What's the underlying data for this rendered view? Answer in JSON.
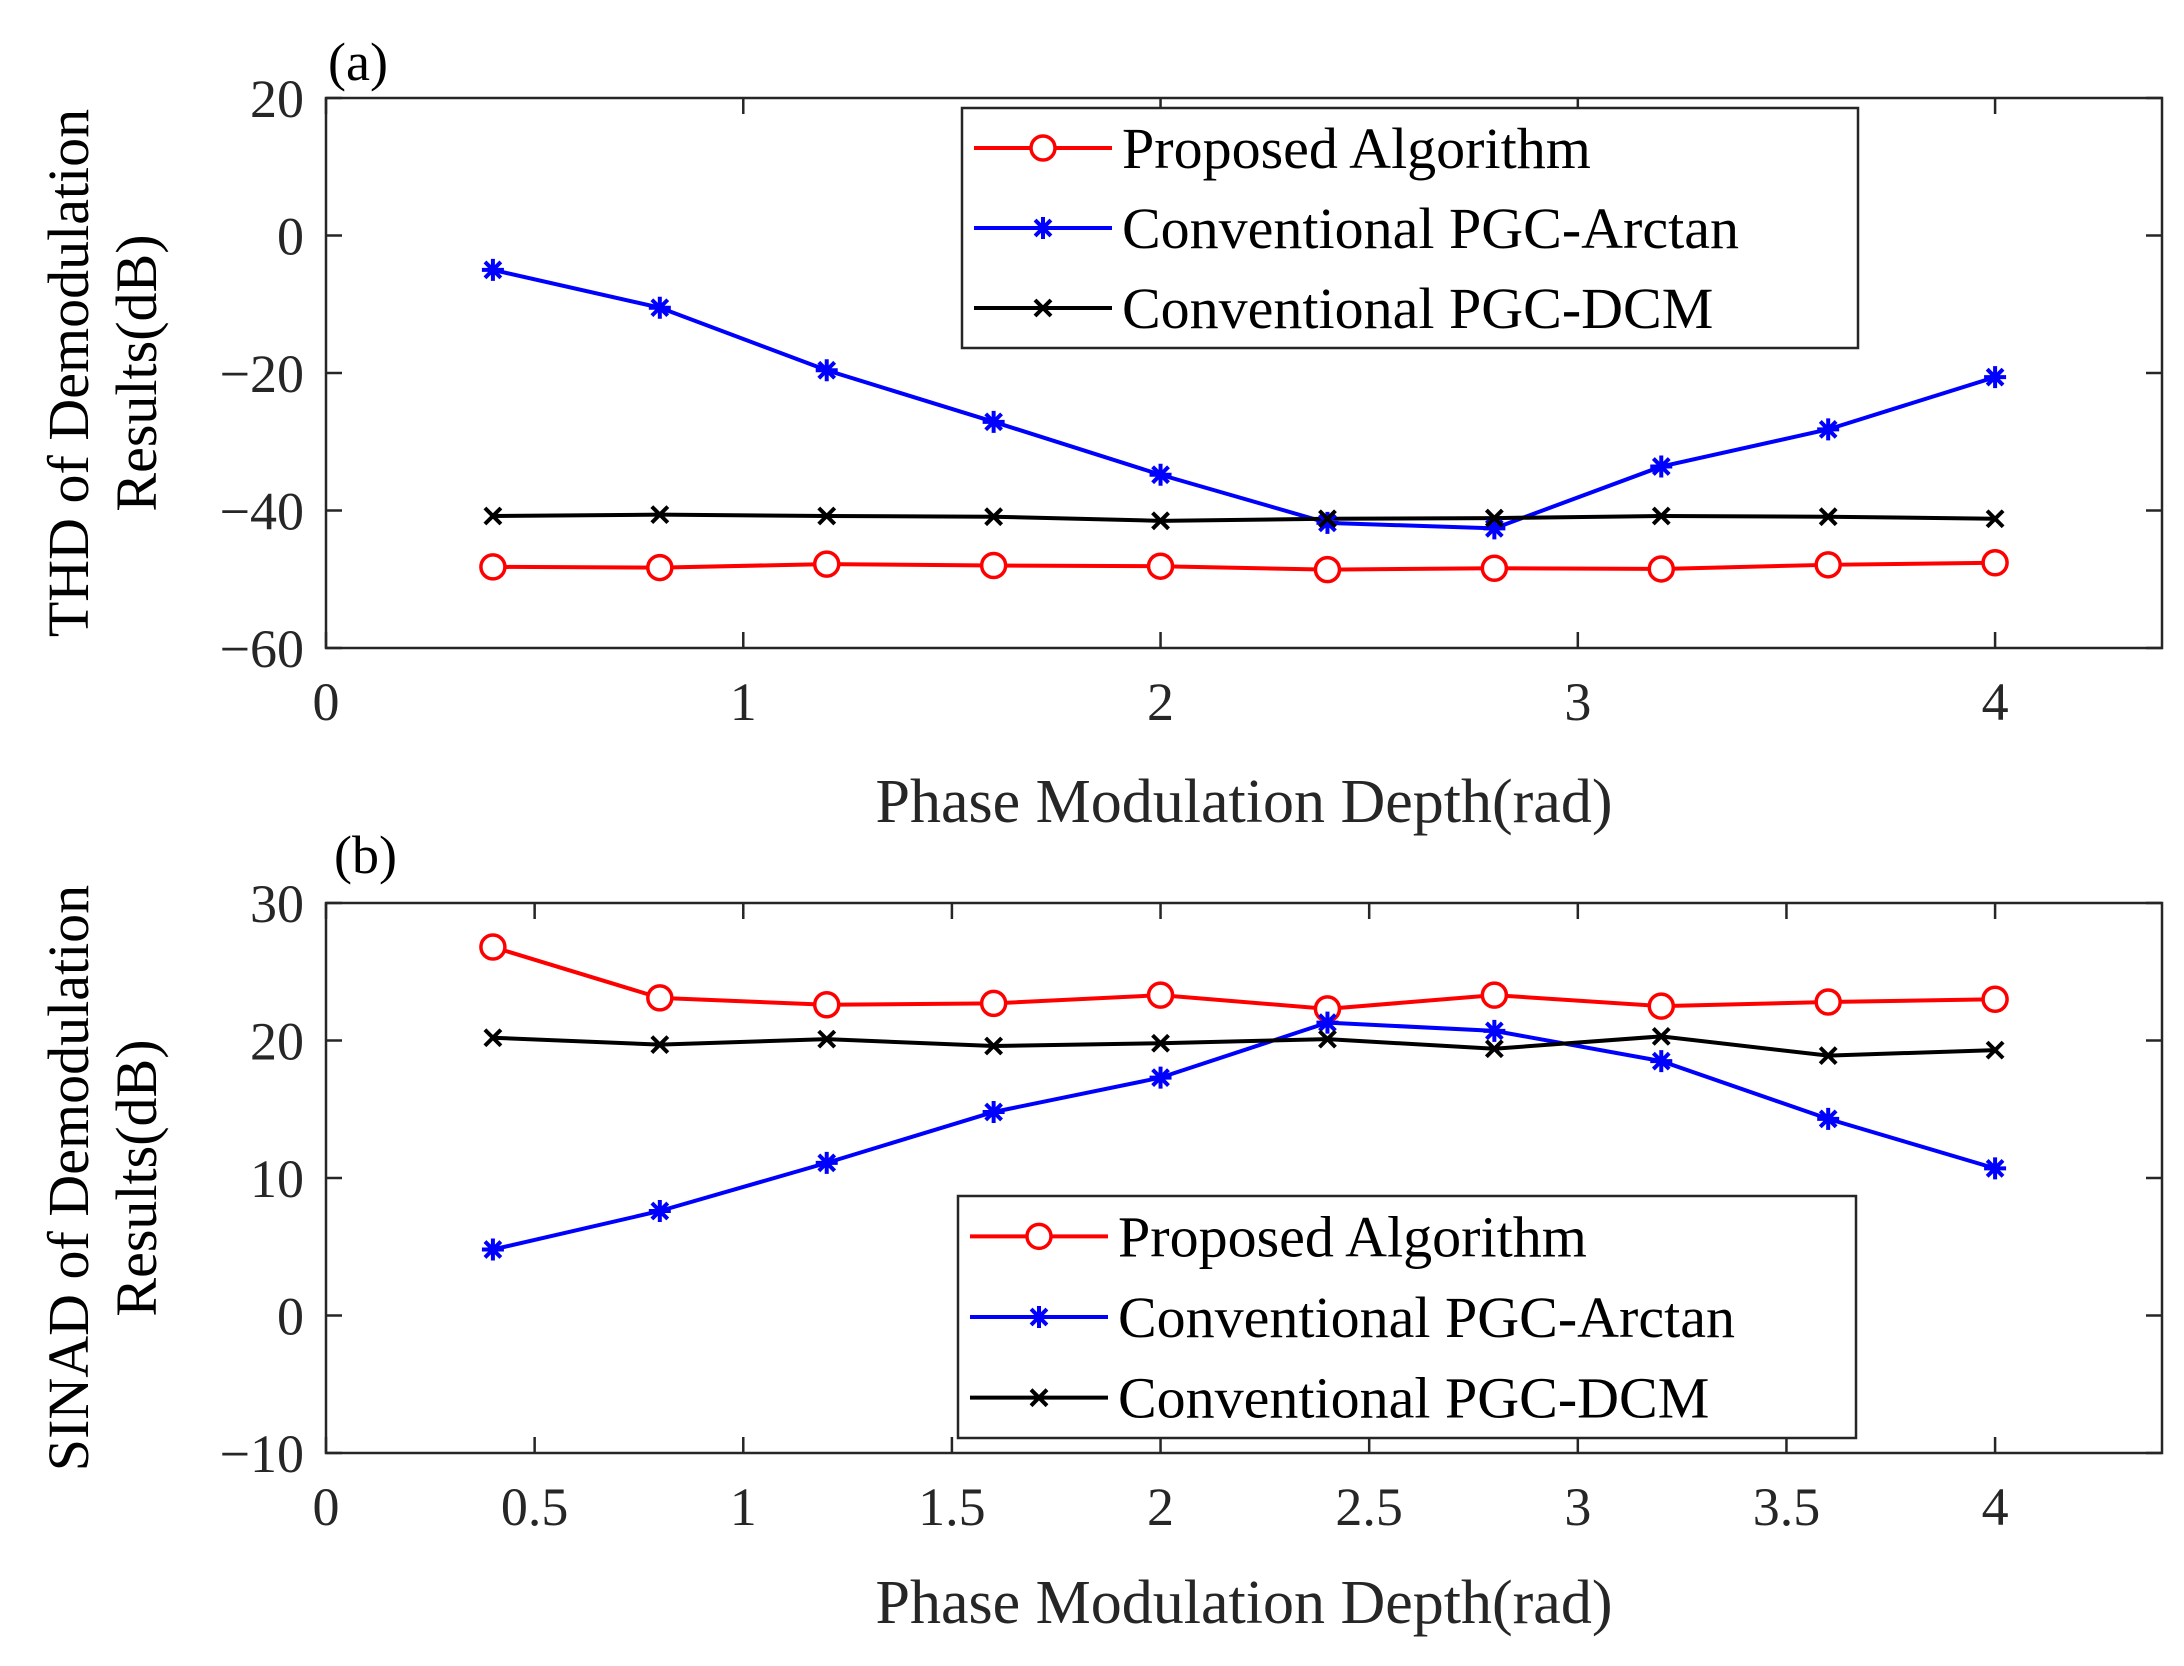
{
  "colors": {
    "proposed": "#ff0000",
    "arctan": "#0000ff",
    "dcm": "#000000",
    "axis": "#262626"
  },
  "chart_data": [
    {
      "type": "line",
      "panel_label": "(a)",
      "ylabel": "THD of Demodulation\nResults(dB)",
      "xlabel": "Phase Modulation Depth(rad)",
      "xlim": [
        0,
        4.4
      ],
      "ylim": [
        -60,
        20
      ],
      "xticks": [
        0,
        1,
        2,
        3,
        4
      ],
      "xtick_labels": [
        "0",
        "1",
        "2",
        "3",
        "4"
      ],
      "yticks": [
        20,
        0,
        -20,
        -40,
        -60
      ],
      "ytick_labels": [
        "20",
        "0",
        "−20",
        "−40",
        "−60"
      ],
      "legend_position": "top-right",
      "x": [
        0.4,
        0.8,
        1.2,
        1.6,
        2.0,
        2.4,
        2.8,
        3.2,
        3.6,
        4.0
      ],
      "series": [
        {
          "name": "Proposed Algorithm",
          "marker": "circle",
          "color_key": "proposed",
          "values": [
            -48.2,
            -48.3,
            -47.8,
            -48.0,
            -48.1,
            -48.6,
            -48.4,
            -48.5,
            -47.9,
            -47.6
          ]
        },
        {
          "name": "Conventional PGC-Arctan",
          "marker": "star",
          "color_key": "arctan",
          "values": [
            -5.0,
            -10.5,
            -19.6,
            -27.1,
            -34.8,
            -41.8,
            -42.6,
            -33.6,
            -28.2,
            -20.6
          ]
        },
        {
          "name": "Conventional PGC-DCM",
          "marker": "x",
          "color_key": "dcm",
          "values": [
            -40.8,
            -40.6,
            -40.8,
            -40.9,
            -41.5,
            -41.2,
            -41.1,
            -40.8,
            -40.9,
            -41.2
          ]
        }
      ]
    },
    {
      "type": "line",
      "panel_label": "(b)",
      "ylabel": "SINAD of Demodulation\nResults(dB)",
      "xlabel": "Phase Modulation Depth(rad)",
      "xlim": [
        0,
        4.4
      ],
      "ylim": [
        -10,
        30
      ],
      "xticks": [
        0,
        0.5,
        1,
        1.5,
        2,
        2.5,
        3,
        3.5,
        4
      ],
      "xtick_labels": [
        "0",
        "0.5",
        "1",
        "1.5",
        "2",
        "2.5",
        "3",
        "3.5",
        "4"
      ],
      "yticks": [
        30,
        20,
        10,
        0,
        -10
      ],
      "ytick_labels": [
        "30",
        "20",
        "10",
        "0",
        "−10"
      ],
      "legend_position": "bottom-right",
      "x": [
        0.4,
        0.8,
        1.2,
        1.6,
        2.0,
        2.4,
        2.8,
        3.2,
        3.6,
        4.0
      ],
      "series": [
        {
          "name": "Proposed Algorithm",
          "marker": "circle",
          "color_key": "proposed",
          "values": [
            26.8,
            23.1,
            22.6,
            22.7,
            23.3,
            22.3,
            23.3,
            22.5,
            22.8,
            23.0
          ]
        },
        {
          "name": "Conventional PGC-Arctan",
          "marker": "star",
          "color_key": "arctan",
          "values": [
            4.8,
            7.6,
            11.1,
            14.8,
            17.3,
            21.3,
            20.7,
            18.5,
            14.3,
            10.7
          ]
        },
        {
          "name": "Conventional PGC-DCM",
          "marker": "x",
          "color_key": "dcm",
          "values": [
            20.2,
            19.7,
            20.1,
            19.6,
            19.8,
            20.1,
            19.4,
            20.3,
            18.9,
            19.3
          ]
        }
      ]
    }
  ]
}
